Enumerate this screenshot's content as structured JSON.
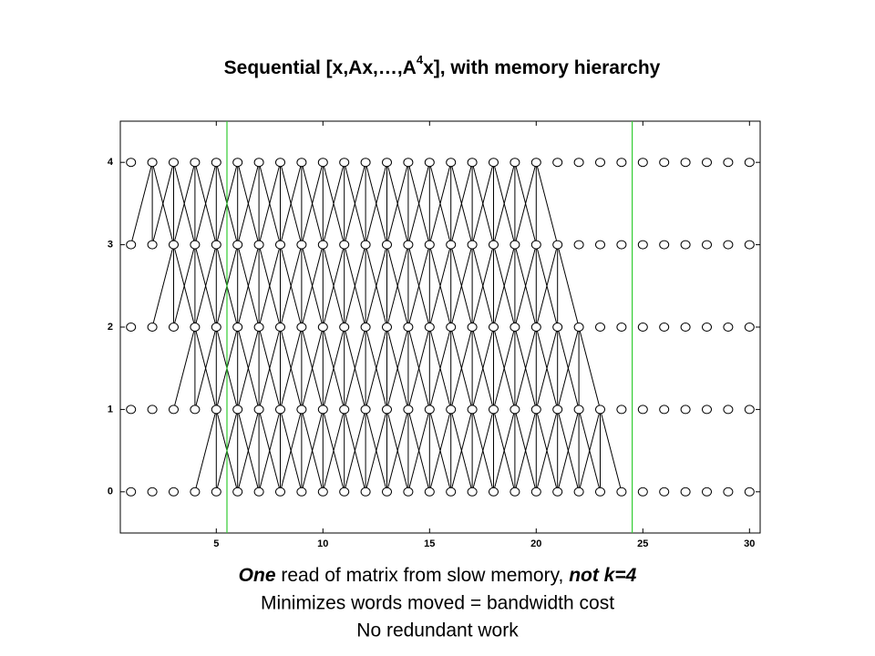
{
  "chart_data": {
    "type": "network",
    "title": "Sequential [x,Ax,…,A",
    "title_sup": "4",
    "title_end": "x], with memory hierarchy",
    "x": [
      1,
      2,
      3,
      4,
      5,
      6,
      7,
      8,
      9,
      10,
      11,
      12,
      13,
      14,
      15,
      16,
      17,
      18,
      19,
      20,
      21,
      22,
      23,
      24,
      25,
      26,
      27,
      28,
      29,
      30
    ],
    "levels": [
      0,
      1,
      2,
      3,
      4
    ],
    "computed": [
      {
        "level": 4,
        "x_start": 2,
        "x_end": 20
      },
      {
        "level": 3,
        "x_start": 3,
        "x_end": 21
      },
      {
        "level": 2,
        "x_start": 4,
        "x_end": 22
      },
      {
        "level": 1,
        "x_start": 5,
        "x_end": 23
      }
    ],
    "boundaries": [
      5.5,
      24.5
    ],
    "boundary_color": "#33cc33",
    "xlim": [
      0.5,
      30.5
    ],
    "ylim": [
      -0.5,
      4.5
    ],
    "xticks": [
      5,
      10,
      15,
      20,
      25,
      30
    ],
    "yticks": [
      0,
      1,
      2,
      3,
      4
    ],
    "caption": {
      "line1_a": "One",
      "line1_b": " read of matrix from slow memory, ",
      "line1_c": "not k=4",
      "line2": "Minimizes words moved = bandwidth cost",
      "line3": "No redundant work"
    }
  }
}
